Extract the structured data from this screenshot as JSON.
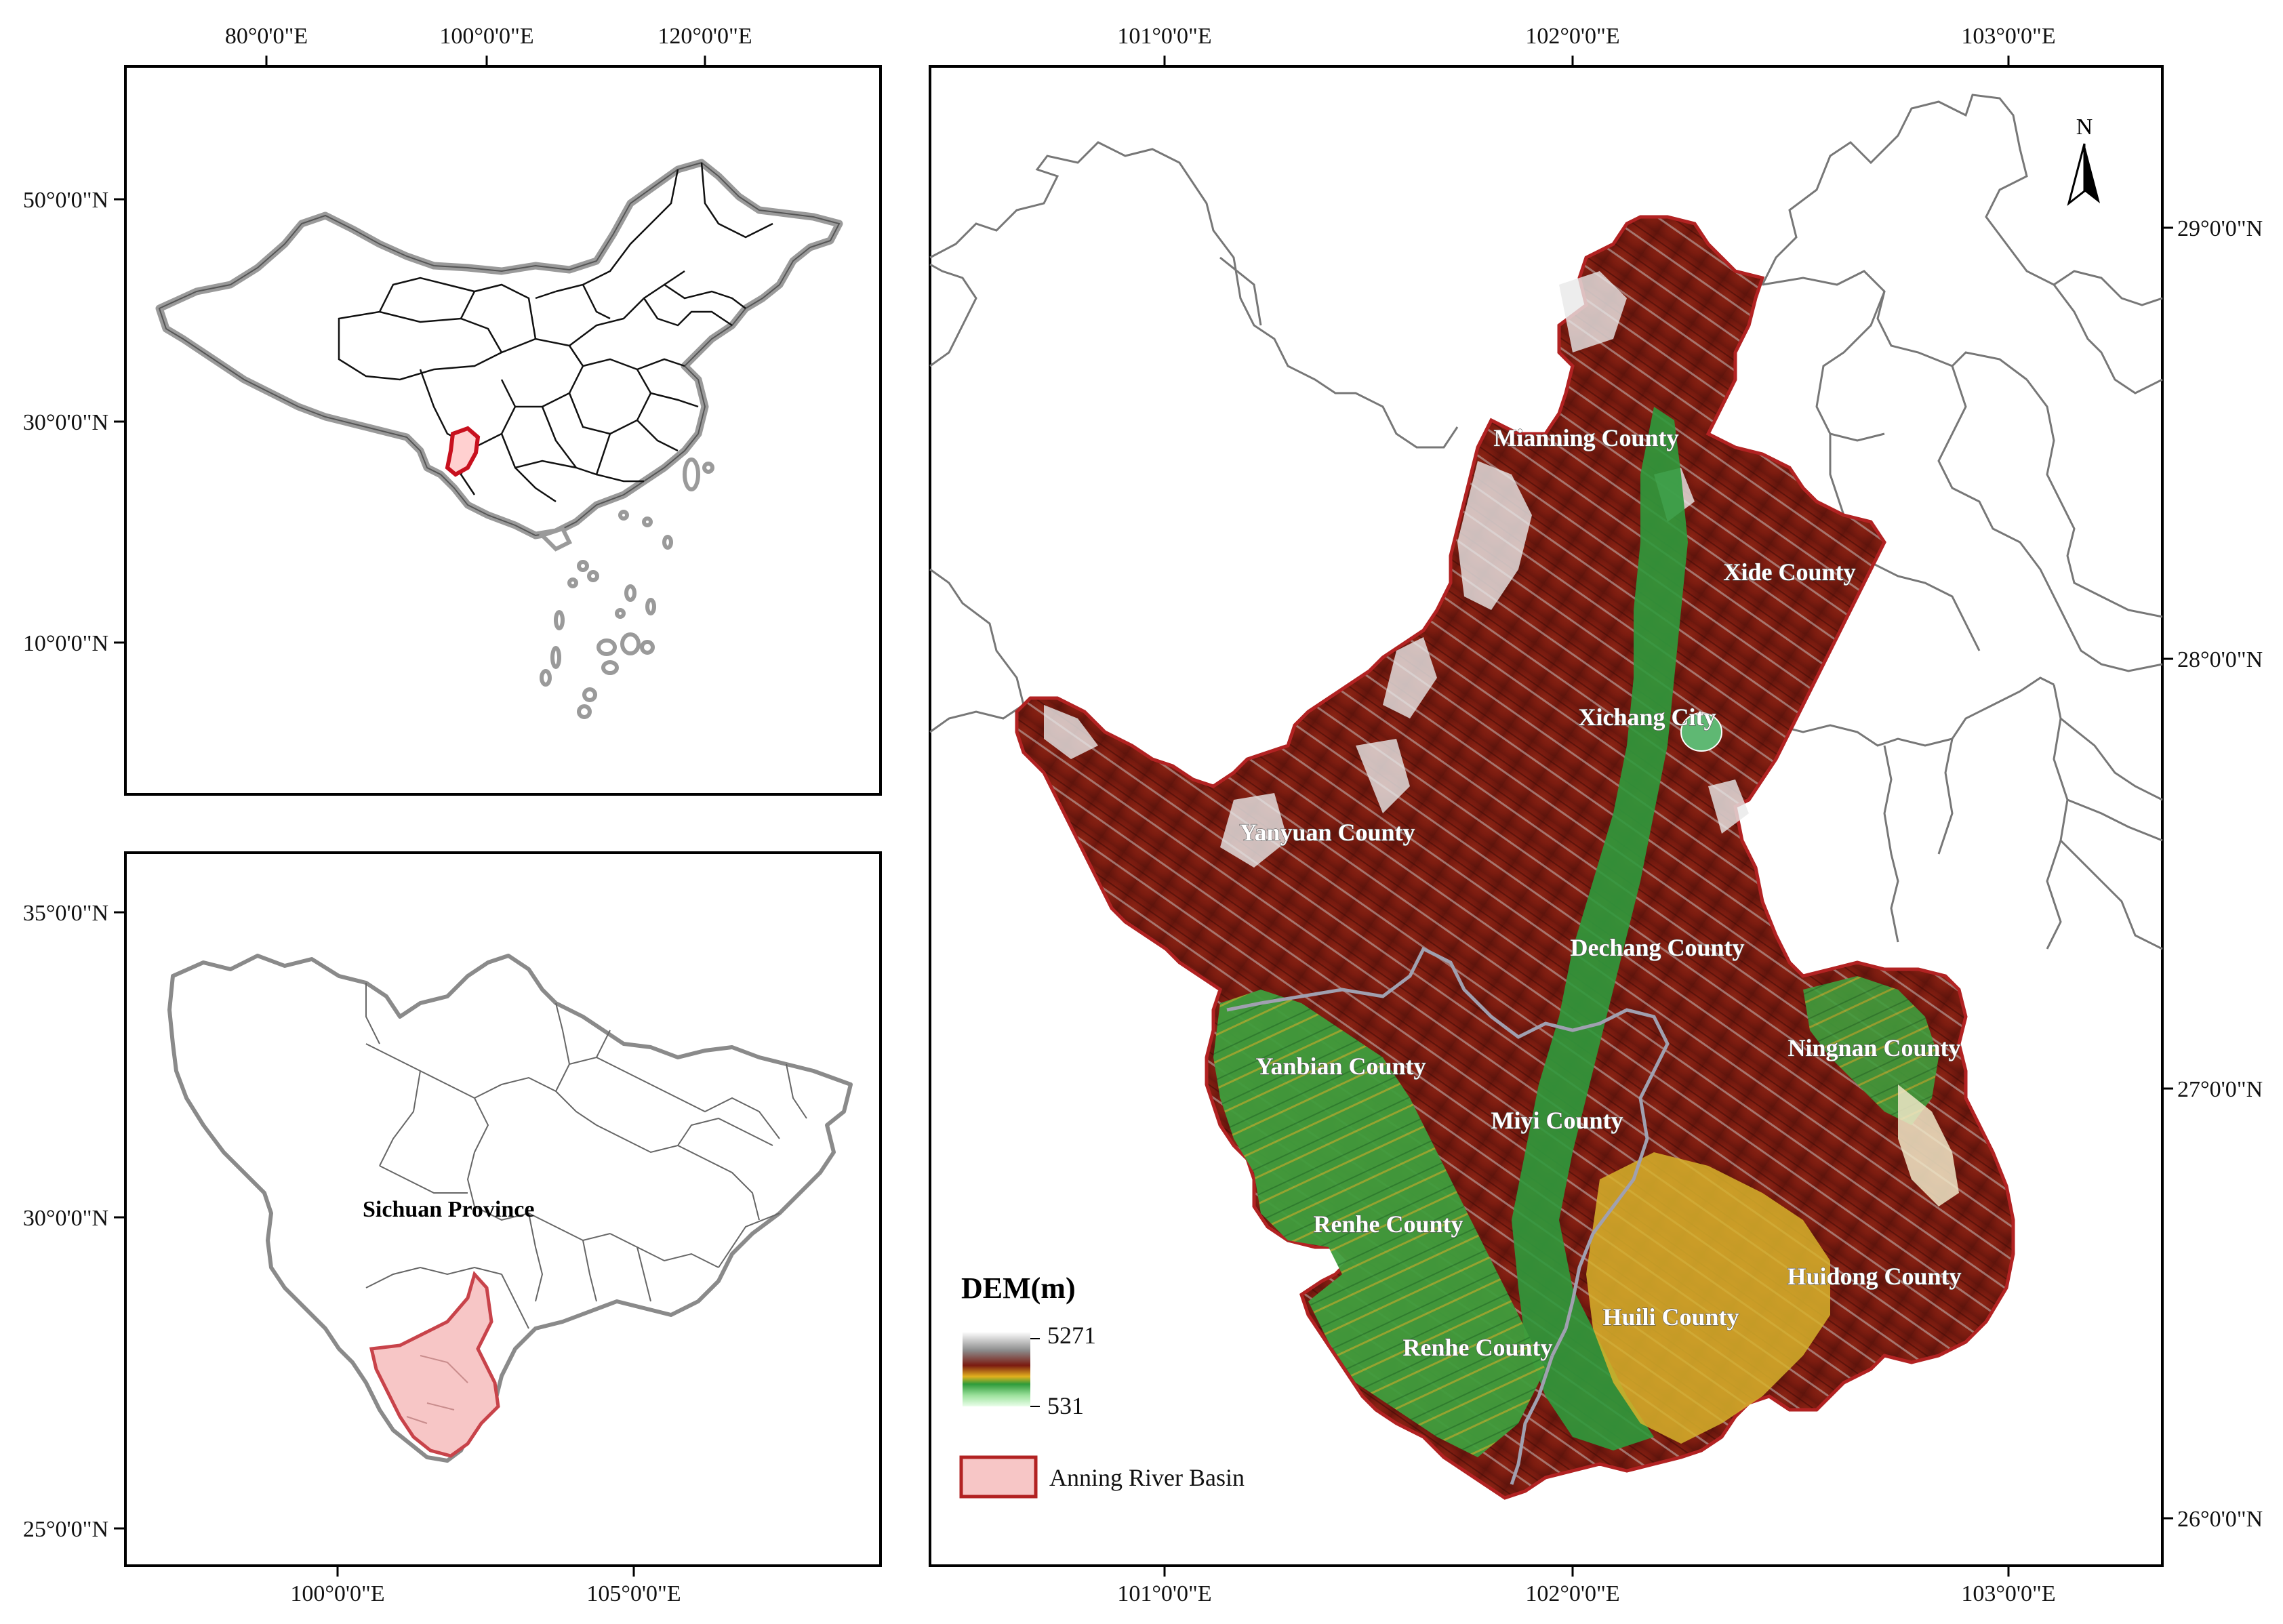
{
  "china_panel": {
    "x_ticks": [
      "80°0'0\"E",
      "100°0'0\"E",
      "120°0'0\"E"
    ],
    "y_ticks": [
      "50°0'0\"N",
      "30°0'0\"N",
      "10°0'0\"N"
    ]
  },
  "sichuan_panel": {
    "x_ticks": [
      "100°0'0\"E",
      "105°0'0\"E"
    ],
    "y_ticks": [
      "35°0'0\"N",
      "30°0'0\"N",
      "25°0'0\"N"
    ],
    "province_label": "Sichuan Province"
  },
  "main_map": {
    "x_ticks": [
      "101°0'0\"E",
      "102°0'0\"E",
      "103°0'0\"E"
    ],
    "y_ticks": [
      "29°0'0\"N",
      "28°0'0\"N",
      "27°0'0\"N",
      "26°0'0\"N"
    ],
    "north_label": "N",
    "counties": [
      "Mianning County",
      "Xide County",
      "Xichang City",
      "Yanyuan County",
      "Dechang County",
      "Ningnan County",
      "Yanbian County",
      "Miyi County",
      "Renhe County",
      "Huidong County",
      "Huili County",
      "Renhe County"
    ]
  },
  "legend": {
    "title": "DEM(m)",
    "max_value": "5271",
    "min_value": "531",
    "basin_label": "Anning River Basin",
    "basin_color": "#f7c6c6",
    "basin_stroke": "#b22222"
  },
  "colors": {
    "dem_high": "#ffffff",
    "dem_upper": "#8b1a10",
    "dem_mid": "#e3b21e",
    "dem_low": "#2e9b3a",
    "dem_lowest": "#eaffea"
  }
}
